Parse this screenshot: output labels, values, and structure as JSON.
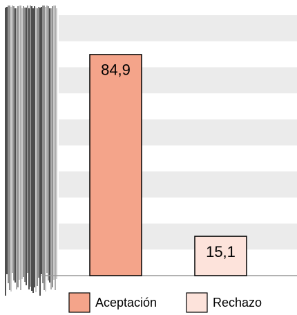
{
  "chart_data": {
    "type": "bar",
    "categories": [
      "Aceptación",
      "Rechazo"
    ],
    "values": [
      84.9,
      15.1
    ],
    "value_labels": [
      "84,9",
      "15,1"
    ],
    "colors": [
      "#f4a48a",
      "#fde3db"
    ],
    "ylim": [
      0,
      100
    ],
    "yticks": [
      0,
      10,
      20,
      30,
      40,
      50,
      60,
      70,
      80,
      90,
      100
    ],
    "grid": true
  }
}
